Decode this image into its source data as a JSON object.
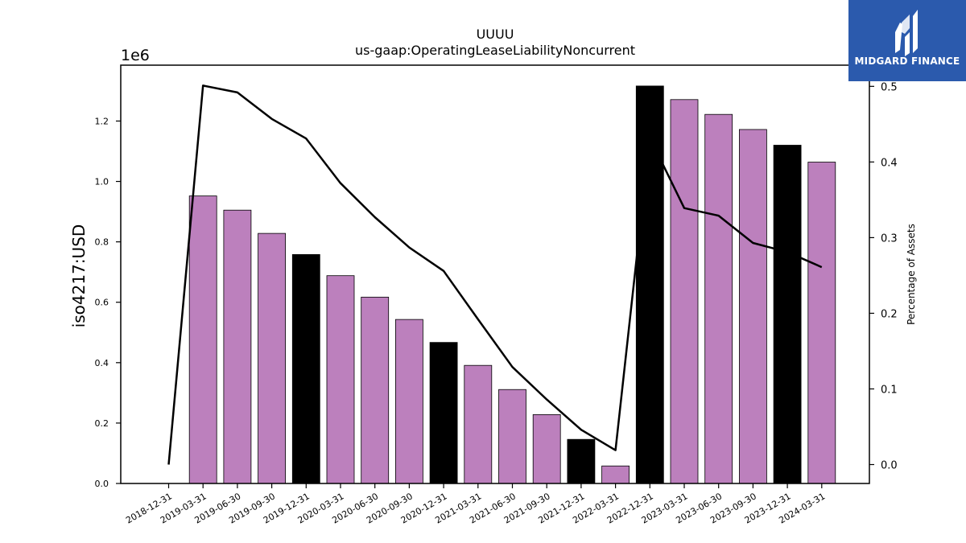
{
  "chart_data": {
    "type": "bar",
    "title": "UUUU",
    "subtitle": "us-gaap:OperatingLeaseLiabilityNoncurrent",
    "ylabel": "iso4217:USD",
    "y2label": "Percentage of Assets",
    "y_offset_label": "1e6",
    "categories": [
      "2018-12-31",
      "2019-03-31",
      "2019-06-30",
      "2019-09-30",
      "2019-12-31",
      "2020-03-31",
      "2020-06-30",
      "2020-09-30",
      "2020-12-31",
      "2021-03-31",
      "2021-06-30",
      "2021-09-30",
      "2021-12-31",
      "2022-03-31",
      "2022-12-31",
      "2023-03-31",
      "2023-06-30",
      "2023-09-30",
      "2023-12-31",
      "2024-03-31"
    ],
    "values": [
      null,
      952000,
      905000,
      828000,
      758000,
      688000,
      617000,
      543000,
      467000,
      391000,
      311000,
      228000,
      146000,
      58000,
      1316000,
      1271000,
      1222000,
      1172000,
      1120000,
      1064000
    ],
    "annual_flags": [
      false,
      false,
      false,
      false,
      true,
      false,
      false,
      false,
      true,
      false,
      false,
      false,
      true,
      false,
      true,
      false,
      false,
      false,
      true,
      false
    ],
    "line_values": [
      0.0,
      0.501,
      0.492,
      0.457,
      0.431,
      0.372,
      0.327,
      0.287,
      0.256,
      0.192,
      0.129,
      0.086,
      0.046,
      0.019,
      0.432,
      0.339,
      0.329,
      0.293,
      0.281,
      0.261
    ],
    "ylim": [
      0,
      1385000
    ],
    "y_ticks": [
      0,
      200000,
      400000,
      600000,
      800000,
      1000000,
      1200000
    ],
    "y_tick_labels": [
      "0.0",
      "0.2",
      "0.4",
      "0.6",
      "0.8",
      "1.0",
      "1.2"
    ],
    "y2lim": [
      -0.025,
      0.528
    ],
    "y2_ticks": [
      0.0,
      0.1,
      0.2,
      0.3,
      0.4,
      0.5
    ],
    "y2_tick_labels": [
      "0.0",
      "0.1",
      "0.2",
      "0.3",
      "0.4",
      "0.5"
    ],
    "colors": {
      "quarter_bar": "#bc80bd",
      "annual_bar": "#000000",
      "line": "#000000"
    }
  },
  "logo": {
    "text": "MIDGARD FINANCE"
  }
}
